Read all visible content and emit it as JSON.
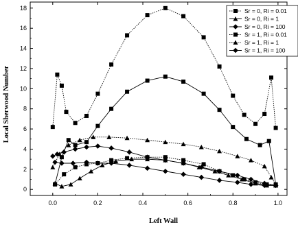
{
  "chart_data": {
    "type": "line",
    "xlabel": "Left Wall",
    "ylabel": "Local Sherwood Number",
    "xlim": [
      -0.1,
      1.04
    ],
    "ylim": [
      -0.6,
      18.6
    ],
    "xticks": [
      0.0,
      0.2,
      0.4,
      0.6,
      0.8,
      1.0
    ],
    "yticks": [
      0,
      2,
      4,
      6,
      8,
      10,
      12,
      14,
      16,
      18
    ],
    "grid": false,
    "legend_position": "top-right",
    "series": [
      {
        "name": "Sr = 0, Ri = 0.01",
        "marker": "square",
        "line": "dotted",
        "x": [
          0.01,
          0.05,
          0.1,
          0.15,
          0.2,
          0.26,
          0.33,
          0.42,
          0.5,
          0.58,
          0.67,
          0.74,
          0.8,
          0.85,
          0.9,
          0.95,
          0.99
        ],
        "y": [
          0.5,
          1.5,
          2.2,
          2.5,
          2.6,
          2.9,
          3.1,
          3.2,
          3.2,
          2.9,
          2.5,
          1.8,
          1.4,
          1.0,
          0.7,
          0.5,
          0.4
        ]
      },
      {
        "name": "Sr = 0, Ri = 1",
        "marker": "triangle",
        "line": "solid",
        "x": [
          0.01,
          0.04,
          0.08,
          0.12,
          0.17,
          0.22,
          0.28,
          0.35,
          0.42,
          0.5,
          0.58,
          0.65,
          0.72,
          0.78,
          0.84,
          0.9,
          0.95,
          0.99
        ],
        "y": [
          0.6,
          0.3,
          0.5,
          1.1,
          1.8,
          2.4,
          2.8,
          3.0,
          3.0,
          2.9,
          2.6,
          2.2,
          1.8,
          1.4,
          1.0,
          0.6,
          0.4,
          0.4
        ]
      },
      {
        "name": "Sr = 0, Ri = 100",
        "marker": "diamond",
        "line": "solid",
        "x": [
          0.01,
          0.04,
          0.09,
          0.15,
          0.2,
          0.26,
          0.34,
          0.42,
          0.5,
          0.58,
          0.66,
          0.74,
          0.82,
          0.88,
          0.94,
          0.99
        ],
        "y": [
          2.7,
          2.6,
          2.6,
          2.7,
          2.6,
          2.6,
          2.4,
          2.1,
          1.8,
          1.5,
          1.2,
          0.9,
          0.7,
          0.5,
          0.4,
          0.4
        ]
      },
      {
        "name": "Sr = 1, Ri = 0.01",
        "marker": "square",
        "line": "dotted",
        "x": [
          0.0,
          0.02,
          0.04,
          0.06,
          0.1,
          0.15,
          0.2,
          0.26,
          0.33,
          0.42,
          0.5,
          0.58,
          0.67,
          0.74,
          0.8,
          0.85,
          0.9,
          0.94,
          0.97,
          0.99
        ],
        "y": [
          6.2,
          11.4,
          10.3,
          7.7,
          6.6,
          7.3,
          9.5,
          12.4,
          15.3,
          17.3,
          18.0,
          17.2,
          15.1,
          12.2,
          9.3,
          7.4,
          6.5,
          7.5,
          11.1,
          6.1
        ]
      },
      {
        "name": "Sr = 1, Ri = 1",
        "marker": "triangle",
        "line": "dotted",
        "x": [
          0.0,
          0.03,
          0.07,
          0.12,
          0.18,
          0.25,
          0.33,
          0.42,
          0.5,
          0.58,
          0.66,
          0.74,
          0.82,
          0.88,
          0.94,
          0.97,
          0.99
        ],
        "y": [
          2.2,
          3.5,
          4.4,
          4.9,
          5.2,
          5.2,
          5.1,
          4.9,
          4.7,
          4.5,
          4.2,
          3.8,
          3.3,
          2.9,
          2.3,
          1.2,
          0.5
        ]
      },
      {
        "name": "Sr = 1, Ri = 100",
        "marker": "diamond",
        "line": "solid",
        "x": [
          0.0,
          0.02,
          0.05,
          0.1,
          0.15,
          0.2,
          0.26,
          0.34,
          0.42,
          0.5,
          0.58,
          0.66,
          0.74,
          0.82,
          0.88,
          0.94,
          0.99
        ],
        "y": [
          3.3,
          3.5,
          3.7,
          4.0,
          4.2,
          4.3,
          4.1,
          3.7,
          3.2,
          2.9,
          2.6,
          2.2,
          1.8,
          1.4,
          1.0,
          0.6,
          0.4
        ]
      },
      {
        "name": "",
        "marker": "square",
        "line": "solid",
        "x": [
          0.01,
          0.04,
          0.07,
          0.1,
          0.15,
          0.2,
          0.26,
          0.33,
          0.42,
          0.5,
          0.58,
          0.67,
          0.74,
          0.8,
          0.86,
          0.92,
          0.96,
          0.99
        ],
        "y": [
          0.5,
          3.2,
          4.9,
          4.4,
          4.7,
          6.3,
          8.0,
          9.7,
          10.8,
          11.2,
          10.7,
          9.5,
          7.9,
          6.2,
          5.0,
          4.4,
          4.8,
          0.5
        ]
      }
    ]
  }
}
